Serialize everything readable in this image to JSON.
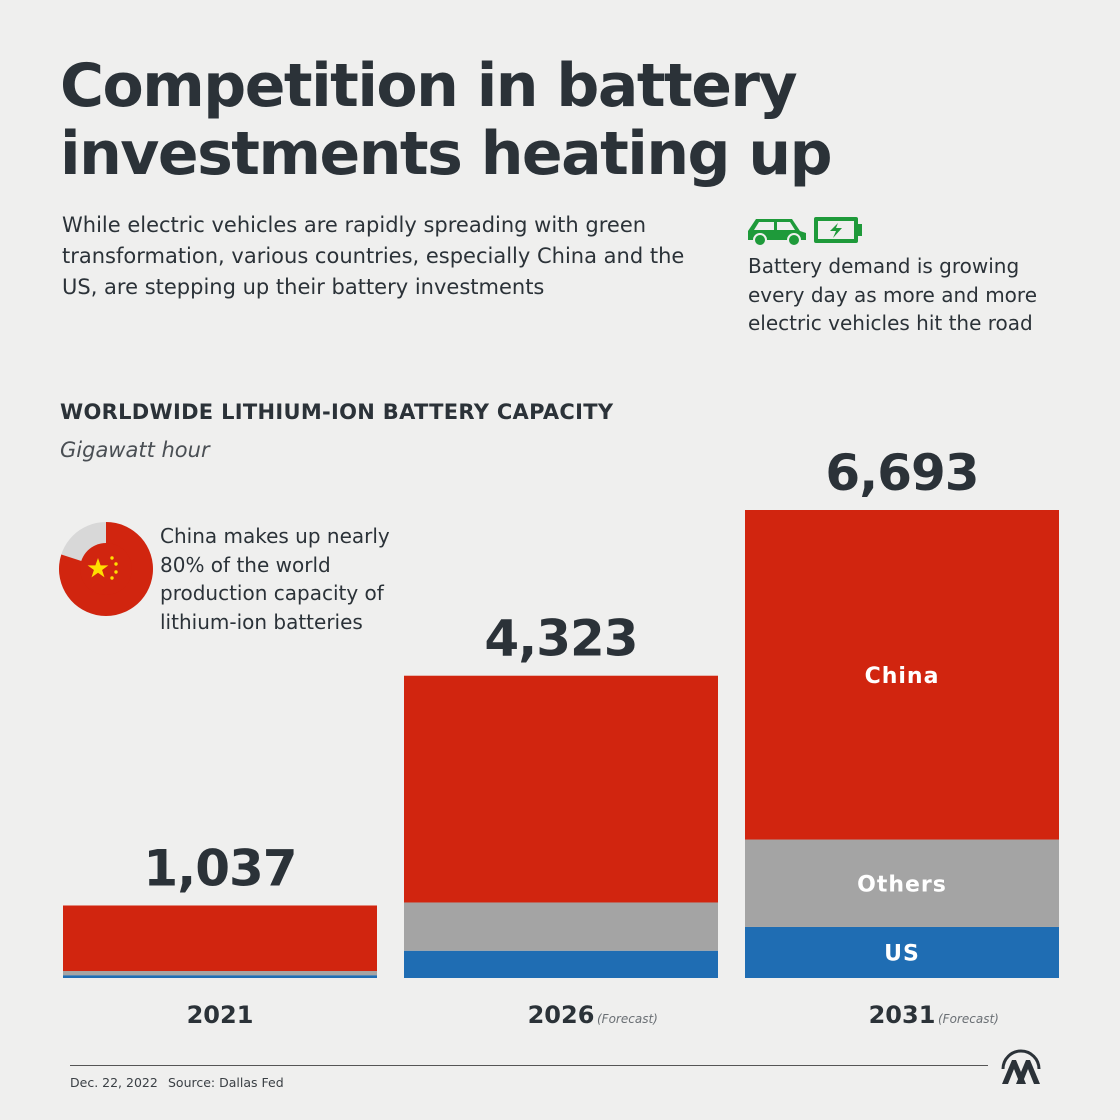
{
  "header": {
    "title_line1": "Competition in battery",
    "title_line2": "investments heating up",
    "intro": "While electric vehicles are rapidly spreading with green transformation, various countries, especially China and the US, are stepping up their battery investments",
    "ev_note": "Battery demand is growing every day as more and more electric vehicles hit the road"
  },
  "side_note": {
    "text": "China makes up nearly 80% of the world production capacity of lithium-ion batteries",
    "china_share_percent": 80
  },
  "colors": {
    "china": "#d1250f",
    "others": "#a4a4a4",
    "us": "#1f6db3",
    "text": "#2b3238",
    "green": "#1e9a3a"
  },
  "chart_data": {
    "type": "bar",
    "stacked": true,
    "title": "WORLDWIDE LITHIUM-ION BATTERY CAPACITY",
    "ylabel": "Gigawatt hour",
    "categories": [
      "2021",
      "2026",
      "2031"
    ],
    "category_notes": [
      "",
      "(Forecast)",
      "(Forecast)"
    ],
    "totals": [
      1037,
      4323,
      6693
    ],
    "total_labels": [
      "1,037",
      "4,323",
      "6,693"
    ],
    "series": [
      {
        "name": "US",
        "values": [
          40,
          390,
          730
        ]
      },
      {
        "name": "Others",
        "values": [
          60,
          690,
          1250
        ]
      },
      {
        "name": "China",
        "values": [
          937,
          3243,
          4713
        ]
      }
    ],
    "ylim": [
      0,
      6693
    ]
  },
  "footer": {
    "date": "Dec. 22, 2022",
    "source": "Source: Dallas Fed",
    "logo_text": "AA"
  }
}
